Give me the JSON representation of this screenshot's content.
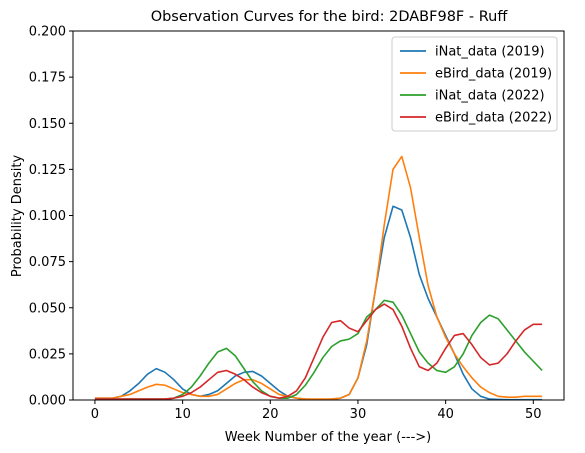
{
  "chart_data": {
    "type": "line",
    "title": "Observation Curves for the bird: 2DABF98F - Ruff",
    "xlabel": "Week Number of the year (--->)",
    "ylabel": "Probability Density",
    "xlim": [
      -2.5,
      53.5
    ],
    "ylim": [
      0,
      0.2
    ],
    "xticks": [
      0,
      10,
      20,
      30,
      40,
      50
    ],
    "yticks": [
      0.0,
      0.025,
      0.05,
      0.075,
      0.1,
      0.125,
      0.15,
      0.175,
      0.2
    ],
    "xtick_labels": [
      "0",
      "10",
      "20",
      "30",
      "40",
      "50"
    ],
    "ytick_labels": [
      "0.000",
      "0.025",
      "0.050",
      "0.075",
      "0.100",
      "0.125",
      "0.150",
      "0.175",
      "0.200"
    ],
    "grid": false,
    "legend_position": "top-right",
    "x": [
      0,
      1,
      2,
      3,
      4,
      5,
      6,
      7,
      8,
      9,
      10,
      11,
      12,
      13,
      14,
      15,
      16,
      17,
      18,
      19,
      20,
      21,
      22,
      23,
      24,
      25,
      26,
      27,
      28,
      29,
      30,
      31,
      32,
      33,
      34,
      35,
      36,
      37,
      38,
      39,
      40,
      41,
      42,
      43,
      44,
      45,
      46,
      47,
      48,
      49,
      50,
      51
    ],
    "series": [
      {
        "name": "iNat_data (2019)",
        "color": "#1f77b4",
        "values": [
          0.001,
          0.001,
          0.001,
          0.002,
          0.005,
          0.009,
          0.014,
          0.017,
          0.015,
          0.011,
          0.006,
          0.003,
          0.002,
          0.003,
          0.005,
          0.009,
          0.013,
          0.015,
          0.0155,
          0.013,
          0.009,
          0.005,
          0.002,
          0.001,
          0.0005,
          0.0003,
          0.0003,
          0.0005,
          0.001,
          0.003,
          0.012,
          0.03,
          0.06,
          0.088,
          0.105,
          0.103,
          0.088,
          0.068,
          0.055,
          0.045,
          0.035,
          0.025,
          0.014,
          0.006,
          0.002,
          0.0005,
          0.0003,
          0.0002,
          0.0002,
          0.0002,
          0.0002,
          0.0002
        ]
      },
      {
        "name": "eBird_data (2019)",
        "color": "#ff7f0e",
        "values": [
          0.001,
          0.001,
          0.001,
          0.002,
          0.003,
          0.005,
          0.007,
          0.0085,
          0.008,
          0.006,
          0.004,
          0.003,
          0.002,
          0.002,
          0.003,
          0.006,
          0.009,
          0.011,
          0.011,
          0.009,
          0.006,
          0.003,
          0.002,
          0.001,
          0.0005,
          0.0005,
          0.0005,
          0.0005,
          0.001,
          0.003,
          0.012,
          0.032,
          0.06,
          0.095,
          0.125,
          0.132,
          0.115,
          0.088,
          0.062,
          0.045,
          0.034,
          0.025,
          0.018,
          0.012,
          0.007,
          0.004,
          0.002,
          0.0015,
          0.0015,
          0.002,
          0.002,
          0.002
        ]
      },
      {
        "name": "iNat_data (2022)",
        "color": "#2ca02c",
        "values": [
          0.0005,
          0.0005,
          0.0005,
          0.0005,
          0.0005,
          0.0005,
          0.0005,
          0.0005,
          0.0005,
          0.001,
          0.003,
          0.007,
          0.013,
          0.02,
          0.026,
          0.028,
          0.024,
          0.017,
          0.01,
          0.005,
          0.002,
          0.001,
          0.001,
          0.003,
          0.008,
          0.015,
          0.023,
          0.029,
          0.032,
          0.033,
          0.036,
          0.045,
          0.049,
          0.054,
          0.053,
          0.046,
          0.036,
          0.026,
          0.02,
          0.016,
          0.015,
          0.018,
          0.025,
          0.035,
          0.042,
          0.046,
          0.044,
          0.038,
          0.032,
          0.026,
          0.021,
          0.016
        ]
      },
      {
        "name": "eBird_data (2022)",
        "color": "#d62728",
        "values": [
          0.0005,
          0.0005,
          0.0005,
          0.0005,
          0.0005,
          0.0005,
          0.0005,
          0.0005,
          0.0005,
          0.001,
          0.002,
          0.004,
          0.007,
          0.011,
          0.015,
          0.016,
          0.014,
          0.011,
          0.007,
          0.004,
          0.002,
          0.001,
          0.002,
          0.005,
          0.012,
          0.023,
          0.034,
          0.042,
          0.043,
          0.039,
          0.037,
          0.043,
          0.049,
          0.052,
          0.049,
          0.04,
          0.028,
          0.018,
          0.016,
          0.02,
          0.028,
          0.035,
          0.036,
          0.03,
          0.023,
          0.019,
          0.02,
          0.025,
          0.032,
          0.038,
          0.041,
          0.041
        ]
      }
    ]
  }
}
